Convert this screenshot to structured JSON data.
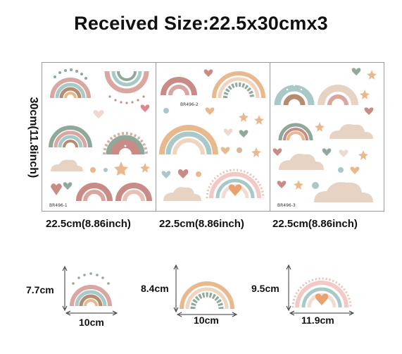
{
  "header": {
    "title": "Received Size:22.5x30cmx3"
  },
  "sheet_height_label": "30cm(11.8inch)",
  "sheets": [
    {
      "code": "BR496-1",
      "width_label": "22.5cm(8.86inch)"
    },
    {
      "code": "BR496-2",
      "width_label": "22.5cm(8.86inch)"
    },
    {
      "code": "BR496-3",
      "width_label": "22.5cm(8.86inch)"
    }
  ],
  "samples": [
    {
      "height_label": "7.7cm",
      "width_label": "10cm"
    },
    {
      "height_label": "8.4cm",
      "width_label": "10cm"
    },
    {
      "height_label": "9.5cm",
      "width_label": "11.9cm"
    }
  ],
  "colors": {
    "blush": "#d9a7a0",
    "rose": "#c98b86",
    "sage": "#8fa89a",
    "teal": "#a9c9c9",
    "peach": "#e9b98e",
    "tan": "#d8b79c",
    "cream": "#efe2d4",
    "cloud": "#e6d3c3"
  },
  "icons": [
    "rainbow-icon",
    "heart-icon",
    "star-icon",
    "cloud-icon",
    "dot-icon"
  ]
}
